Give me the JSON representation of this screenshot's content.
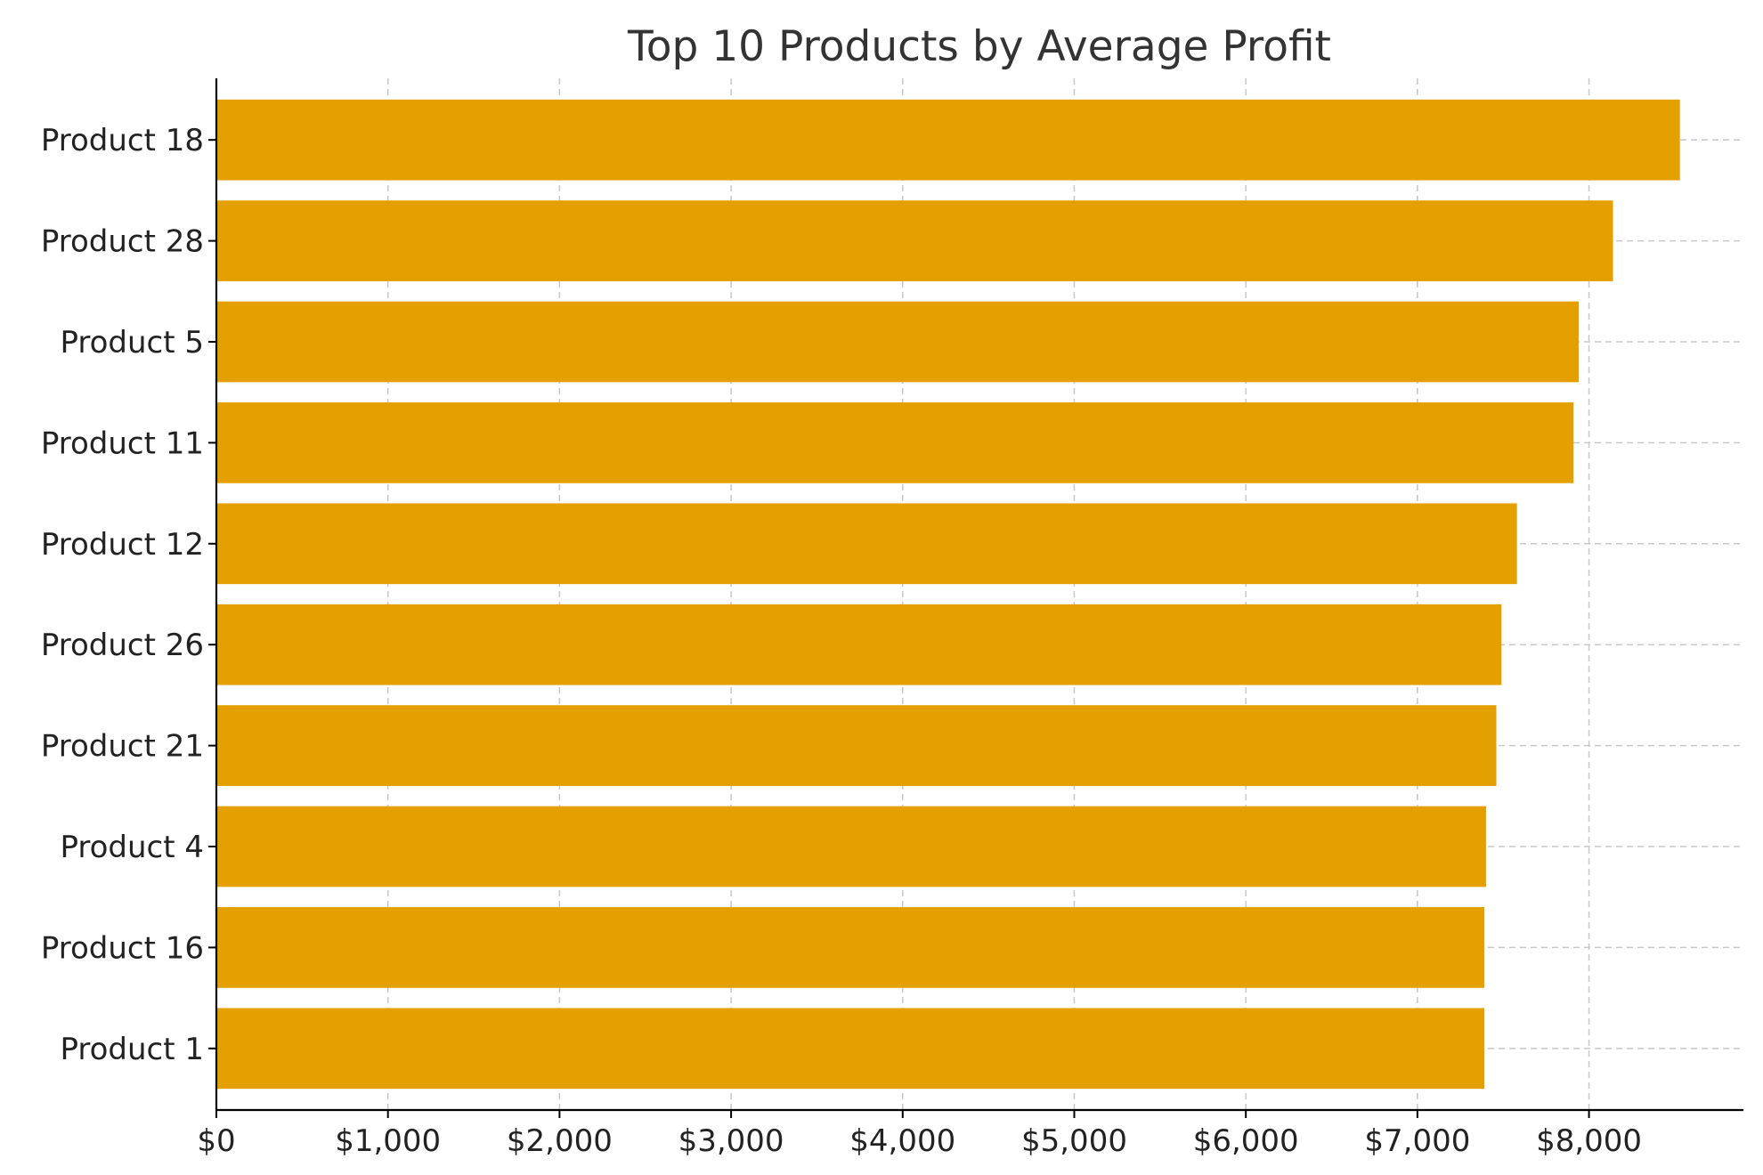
{
  "chart_data": {
    "type": "bar",
    "orientation": "horizontal",
    "title": "Top 10 Products by Average Profit",
    "xlabel": "",
    "ylabel": "",
    "categories": [
      "Product 18",
      "Product 28",
      "Product 5",
      "Product 11",
      "Product 12",
      "Product 26",
      "Product 21",
      "Product 4",
      "Product 16",
      "Product 1"
    ],
    "values": [
      8530,
      8140,
      7940,
      7910,
      7580,
      7490,
      7460,
      7400,
      7390,
      7390
    ],
    "xlim": [
      0,
      8900
    ],
    "x_ticks": [
      0,
      1000,
      2000,
      3000,
      4000,
      5000,
      6000,
      7000,
      8000
    ],
    "x_tick_labels": [
      "$0",
      "$1,000",
      "$2,000",
      "$3,000",
      "$4,000",
      "$5,000",
      "$6,000",
      "$7,000",
      "$8,000"
    ],
    "grid": true,
    "grid_style": "dashed",
    "bar_color": "#e3a000",
    "axis_color": "#000000",
    "grid_color": "#c8c8c8"
  }
}
